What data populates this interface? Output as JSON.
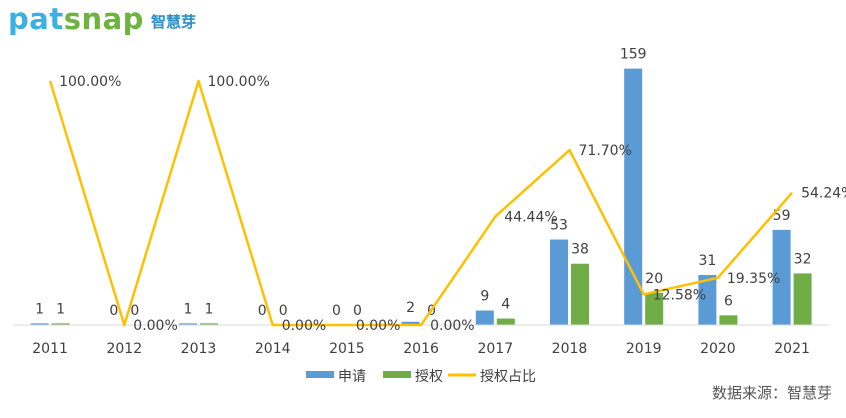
{
  "logo": {
    "name_part1": "pat",
    "name_part2": "snap",
    "name_cn": "智慧芽"
  },
  "source": "数据来源：智慧芽",
  "chart_data": {
    "type": "bar",
    "categories": [
      "2011",
      "2012",
      "2013",
      "2014",
      "2015",
      "2016",
      "2017",
      "2018",
      "2019",
      "2020",
      "2021"
    ],
    "series": [
      {
        "name": "申请",
        "type": "bar",
        "color": "#5b9bd5",
        "values": [
          1,
          0,
          1,
          0,
          0,
          2,
          9,
          53,
          159,
          31,
          59
        ]
      },
      {
        "name": "授权",
        "type": "bar",
        "color": "#70ad47",
        "values": [
          1,
          0,
          1,
          0,
          0,
          0,
          4,
          38,
          20,
          6,
          32
        ]
      },
      {
        "name": "授权占比",
        "type": "line",
        "color": "#ffc000",
        "values": [
          100.0,
          0.0,
          100.0,
          0.0,
          0.0,
          0.0,
          44.44,
          71.7,
          12.58,
          19.35,
          54.24
        ],
        "labels": [
          "100.00%",
          "0.00%",
          "100.00%",
          "0.00%",
          "0.00%",
          "0.00%",
          "44.44%",
          "71.70%",
          "12.58%",
          "19.35%",
          "54.24%"
        ]
      }
    ],
    "bar_ylim": [
      0,
      160
    ],
    "line_ylim": [
      0,
      100
    ],
    "legend_position": "bottom",
    "grid": false
  }
}
